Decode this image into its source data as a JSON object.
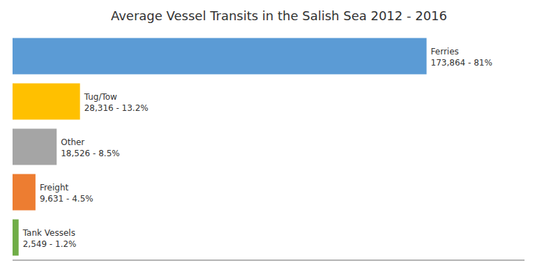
{
  "chart_data": {
    "type": "bar",
    "title": "Average Vessel Transits in the Salish Sea 2012 - 2016",
    "orientation": "horizontal",
    "categories": [
      "Ferries",
      "Tug/Tow",
      "Other",
      "Freight",
      "Tank Vessels"
    ],
    "values": [
      173864,
      28316,
      18526,
      9631,
      2549
    ],
    "value_labels": [
      "173,864 - 81%",
      "28,316 - 13.2%",
      "18,526 - 8.5%",
      "9,631 - 4.5%",
      "2,549 - 1.2%"
    ],
    "colors": [
      "#5B9BD5",
      "#FFC000",
      "#A5A5A5",
      "#ED7D31",
      "#70AD47"
    ],
    "xlim": [
      0,
      215000
    ],
    "data_labels": true,
    "tick_labels": false,
    "grid": false
  }
}
